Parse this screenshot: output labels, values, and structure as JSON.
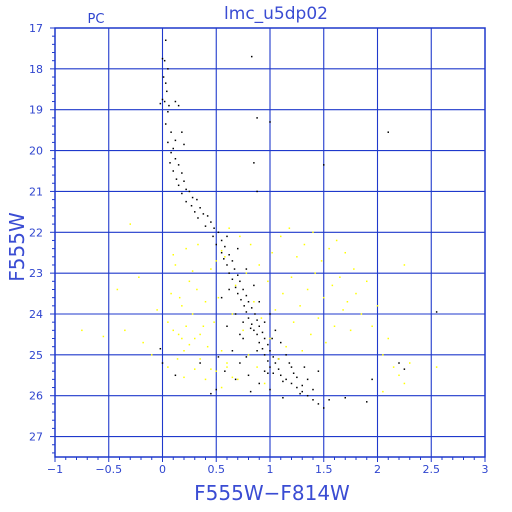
{
  "chart_data": {
    "type": "scatter",
    "title": "lmc_u5dp02",
    "panel_label": "PC",
    "xlabel": "F555W−F814W",
    "ylabel": "F555W",
    "xlim": [
      -1,
      3
    ],
    "ylim": [
      27.5,
      17
    ],
    "y_inverted": true,
    "grid": true,
    "x_ticks": [
      -1,
      -0.5,
      0,
      0.5,
      1,
      1.5,
      2,
      2.5,
      3
    ],
    "x_tick_labels": [
      "−1",
      "−0.5",
      "0",
      "0.5",
      "1",
      "1.5",
      "2",
      "2.5",
      "3"
    ],
    "y_ticks": [
      17,
      18,
      19,
      20,
      21,
      22,
      23,
      24,
      25,
      26,
      27
    ],
    "y_tick_labels": [
      "17",
      "18",
      "19",
      "20",
      "21",
      "22",
      "23",
      "24",
      "25",
      "26",
      "27"
    ],
    "colors": {
      "frame": "#1f39cc",
      "text": "#2f45cf",
      "series_black": "#000000",
      "series_yellow": "#ffff00"
    },
    "series": [
      {
        "color": "black",
        "points": [
          [
            0.03,
            17.3
          ],
          [
            0.0,
            17.75
          ],
          [
            0.02,
            17.8
          ],
          [
            0.05,
            18.0
          ],
          [
            0.01,
            18.2
          ],
          [
            0.03,
            18.35
          ],
          [
            0.04,
            18.55
          ],
          [
            0.0,
            18.75
          ],
          [
            0.02,
            18.8
          ],
          [
            0.06,
            18.9
          ],
          [
            0.12,
            18.8
          ],
          [
            0.15,
            18.9
          ],
          [
            -0.02,
            18.85
          ],
          [
            0.05,
            19.05
          ],
          [
            0.03,
            19.35
          ],
          [
            0.08,
            19.55
          ],
          [
            0.18,
            19.55
          ],
          [
            0.12,
            19.75
          ],
          [
            0.05,
            19.8
          ],
          [
            0.1,
            19.95
          ],
          [
            0.2,
            19.85
          ],
          [
            0.08,
            20.05
          ],
          [
            0.12,
            20.2
          ],
          [
            0.07,
            20.3
          ],
          [
            0.15,
            20.35
          ],
          [
            0.1,
            20.5
          ],
          [
            0.18,
            20.55
          ],
          [
            0.13,
            20.7
          ],
          [
            0.2,
            20.75
          ],
          [
            0.15,
            20.85
          ],
          [
            0.22,
            20.95
          ],
          [
            0.25,
            21.0
          ],
          [
            0.18,
            21.05
          ],
          [
            0.28,
            21.15
          ],
          [
            0.22,
            21.25
          ],
          [
            0.32,
            21.2
          ],
          [
            0.27,
            21.35
          ],
          [
            0.35,
            21.4
          ],
          [
            0.3,
            21.5
          ],
          [
            0.38,
            21.55
          ],
          [
            0.33,
            21.65
          ],
          [
            0.42,
            21.6
          ],
          [
            0.45,
            21.75
          ],
          [
            0.4,
            21.85
          ],
          [
            0.48,
            21.9
          ],
          [
            0.52,
            22.0
          ],
          [
            0.47,
            22.1
          ],
          [
            0.55,
            22.2
          ],
          [
            0.5,
            22.3
          ],
          [
            0.58,
            22.35
          ],
          [
            0.55,
            22.5
          ],
          [
            0.62,
            22.55
          ],
          [
            0.57,
            22.65
          ],
          [
            0.65,
            22.7
          ],
          [
            0.6,
            22.8
          ],
          [
            0.67,
            22.9
          ],
          [
            0.62,
            23.0
          ],
          [
            0.7,
            23.05
          ],
          [
            0.65,
            23.15
          ],
          [
            0.72,
            23.2
          ],
          [
            0.68,
            23.35
          ],
          [
            0.75,
            23.4
          ],
          [
            0.7,
            23.5
          ],
          [
            0.78,
            23.55
          ],
          [
            0.73,
            23.65
          ],
          [
            0.8,
            23.7
          ],
          [
            0.76,
            23.8
          ],
          [
            0.83,
            23.85
          ],
          [
            0.78,
            23.95
          ],
          [
            0.86,
            24.0
          ],
          [
            0.8,
            24.1
          ],
          [
            0.88,
            24.15
          ],
          [
            0.83,
            24.25
          ],
          [
            0.9,
            24.3
          ],
          [
            0.85,
            24.4
          ],
          [
            0.93,
            24.45
          ],
          [
            0.88,
            24.5
          ],
          [
            0.95,
            24.6
          ],
          [
            0.9,
            24.7
          ],
          [
            0.98,
            24.75
          ],
          [
            0.93,
            24.85
          ],
          [
            1.0,
            24.9
          ],
          [
            0.95,
            25.0
          ],
          [
            1.03,
            25.05
          ],
          [
            0.98,
            25.15
          ],
          [
            1.05,
            25.2
          ],
          [
            1.0,
            25.3
          ],
          [
            1.08,
            25.35
          ],
          [
            1.03,
            25.45
          ],
          [
            1.1,
            25.5
          ],
          [
            1.15,
            25.6
          ],
          [
            1.2,
            25.7
          ],
          [
            1.25,
            25.8
          ],
          [
            1.3,
            25.9
          ],
          [
            1.35,
            26.0
          ],
          [
            1.4,
            26.1
          ],
          [
            1.45,
            26.2
          ],
          [
            1.5,
            26.3
          ],
          [
            1.55,
            26.1
          ],
          [
            0.6,
            22.1
          ],
          [
            0.7,
            22.4
          ],
          [
            0.78,
            22.9
          ],
          [
            0.62,
            23.4
          ],
          [
            0.85,
            23.3
          ],
          [
            0.55,
            23.6
          ],
          [
            0.9,
            23.7
          ],
          [
            0.68,
            24.0
          ],
          [
            1.0,
            24.0
          ],
          [
            0.6,
            24.3
          ],
          [
            1.05,
            24.4
          ],
          [
            0.75,
            24.6
          ],
          [
            1.1,
            24.7
          ],
          [
            0.65,
            24.9
          ],
          [
            1.15,
            25.0
          ],
          [
            0.72,
            25.2
          ],
          [
            1.2,
            25.3
          ],
          [
            0.8,
            25.5
          ],
          [
            1.25,
            25.55
          ],
          [
            0.9,
            25.7
          ],
          [
            1.3,
            25.75
          ],
          [
            1.0,
            25.85
          ],
          [
            1.35,
            25.6
          ],
          [
            0.95,
            25.4
          ],
          [
            1.4,
            25.85
          ],
          [
            1.12,
            26.05
          ],
          [
            1.28,
            25.95
          ],
          [
            0.82,
            25.9
          ],
          [
            1.45,
            25.4
          ],
          [
            0.75,
            24.2
          ],
          [
            0.82,
            24.35
          ],
          [
            0.95,
            24.2
          ],
          [
            0.72,
            24.5
          ],
          [
            0.88,
            24.9
          ],
          [
            1.02,
            24.6
          ],
          [
            1.08,
            25.1
          ],
          [
            1.18,
            25.2
          ],
          [
            0.78,
            25.05
          ],
          [
            0.98,
            25.45
          ],
          [
            1.12,
            25.65
          ],
          [
            1.22,
            25.45
          ],
          [
            1.32,
            25.3
          ],
          [
            0.68,
            25.6
          ],
          [
            0.58,
            25.4
          ],
          [
            0.52,
            25.05
          ],
          [
            0.0,
            25.2
          ],
          [
            -0.02,
            24.85
          ],
          [
            0.12,
            25.5
          ],
          [
            0.35,
            25.2
          ],
          [
            0.45,
            25.95
          ],
          [
            0.5,
            25.85
          ],
          [
            0.88,
            19.2
          ],
          [
            0.85,
            20.3
          ],
          [
            0.88,
            21.0
          ],
          [
            1.0,
            19.3
          ],
          [
            1.5,
            20.35
          ],
          [
            0.83,
            17.7
          ],
          [
            2.1,
            19.55
          ],
          [
            2.55,
            23.95
          ],
          [
            2.2,
            25.2
          ],
          [
            2.25,
            25.35
          ],
          [
            1.95,
            25.6
          ],
          [
            1.9,
            26.15
          ],
          [
            1.7,
            26.05
          ]
        ]
      },
      {
        "color": "yellow",
        "points": [
          [
            -0.75,
            24.4
          ],
          [
            -0.55,
            24.55
          ],
          [
            -0.42,
            23.4
          ],
          [
            -0.35,
            24.4
          ],
          [
            -0.3,
            21.8
          ],
          [
            -0.22,
            23.1
          ],
          [
            -0.18,
            24.7
          ],
          [
            -0.1,
            25.0
          ],
          [
            -0.05,
            23.9
          ],
          [
            0.05,
            24.2
          ],
          [
            0.08,
            23.5
          ],
          [
            0.12,
            22.8
          ],
          [
            0.15,
            24.5
          ],
          [
            0.18,
            23.8
          ],
          [
            0.2,
            24.9
          ],
          [
            0.22,
            22.4
          ],
          [
            0.25,
            23.2
          ],
          [
            0.28,
            24.0
          ],
          [
            0.3,
            24.6
          ],
          [
            0.32,
            23.4
          ],
          [
            0.35,
            25.1
          ],
          [
            0.38,
            24.3
          ],
          [
            0.4,
            23.7
          ],
          [
            0.42,
            24.8
          ],
          [
            0.45,
            22.9
          ],
          [
            0.48,
            24.2
          ],
          [
            0.5,
            25.4
          ],
          [
            0.52,
            23.6
          ],
          [
            0.55,
            24.9
          ],
          [
            0.58,
            22.6
          ],
          [
            0.6,
            25.2
          ],
          [
            0.62,
            21.9
          ],
          [
            0.65,
            24.0
          ],
          [
            0.68,
            23.3
          ],
          [
            0.7,
            25.6
          ],
          [
            0.72,
            22.1
          ],
          [
            0.75,
            24.4
          ],
          [
            0.78,
            23.0
          ],
          [
            0.8,
            25.0
          ],
          [
            0.82,
            22.3
          ],
          [
            0.85,
            23.7
          ],
          [
            0.88,
            25.3
          ],
          [
            0.9,
            22.8
          ],
          [
            0.92,
            24.1
          ],
          [
            0.95,
            25.7
          ],
          [
            0.98,
            23.2
          ],
          [
            1.0,
            24.6
          ],
          [
            1.02,
            22.5
          ],
          [
            1.05,
            23.9
          ],
          [
            1.08,
            25.1
          ],
          [
            1.1,
            22.1
          ],
          [
            1.12,
            23.5
          ],
          [
            1.15,
            24.8
          ],
          [
            1.18,
            21.9
          ],
          [
            1.2,
            23.1
          ],
          [
            1.22,
            24.2
          ],
          [
            1.25,
            22.6
          ],
          [
            1.28,
            23.8
          ],
          [
            1.3,
            24.9
          ],
          [
            1.32,
            22.3
          ],
          [
            1.35,
            23.4
          ],
          [
            1.38,
            24.5
          ],
          [
            1.4,
            22.0
          ],
          [
            1.42,
            23.0
          ],
          [
            1.45,
            24.1
          ],
          [
            1.48,
            22.7
          ],
          [
            1.5,
            23.6
          ],
          [
            1.52,
            24.7
          ],
          [
            1.55,
            22.4
          ],
          [
            1.58,
            23.3
          ],
          [
            1.6,
            24.3
          ],
          [
            1.62,
            22.2
          ],
          [
            1.65,
            23.1
          ],
          [
            1.68,
            23.9
          ],
          [
            1.7,
            22.5
          ],
          [
            1.72,
            23.7
          ],
          [
            1.75,
            24.4
          ],
          [
            1.78,
            22.9
          ],
          [
            1.8,
            23.5
          ],
          [
            1.85,
            24.0
          ],
          [
            1.9,
            23.2
          ],
          [
            1.95,
            24.3
          ],
          [
            2.0,
            23.8
          ],
          [
            2.05,
            25.0
          ],
          [
            2.1,
            24.6
          ],
          [
            2.15,
            25.3
          ],
          [
            2.2,
            25.5
          ],
          [
            2.25,
            22.8
          ],
          [
            2.3,
            25.2
          ],
          [
            2.55,
            25.3
          ],
          [
            2.25,
            25.7
          ],
          [
            2.05,
            25.9
          ],
          [
            0.1,
            24.4
          ],
          [
            0.18,
            24.6
          ],
          [
            0.25,
            24.75
          ],
          [
            0.14,
            25.1
          ],
          [
            0.3,
            25.35
          ],
          [
            0.05,
            25.3
          ],
          [
            0.2,
            25.55
          ],
          [
            0.4,
            25.6
          ],
          [
            0.55,
            25.8
          ],
          [
            0.65,
            25.55
          ],
          [
            0.6,
            25.3
          ],
          [
            0.45,
            25.35
          ],
          [
            0.35,
            24.5
          ],
          [
            0.22,
            24.3
          ],
          [
            0.16,
            23.6
          ],
          [
            0.28,
            22.95
          ],
          [
            0.1,
            22.55
          ],
          [
            0.33,
            22.3
          ],
          [
            0.5,
            22.7
          ],
          [
            0.55,
            22.45
          ]
        ]
      }
    ]
  }
}
